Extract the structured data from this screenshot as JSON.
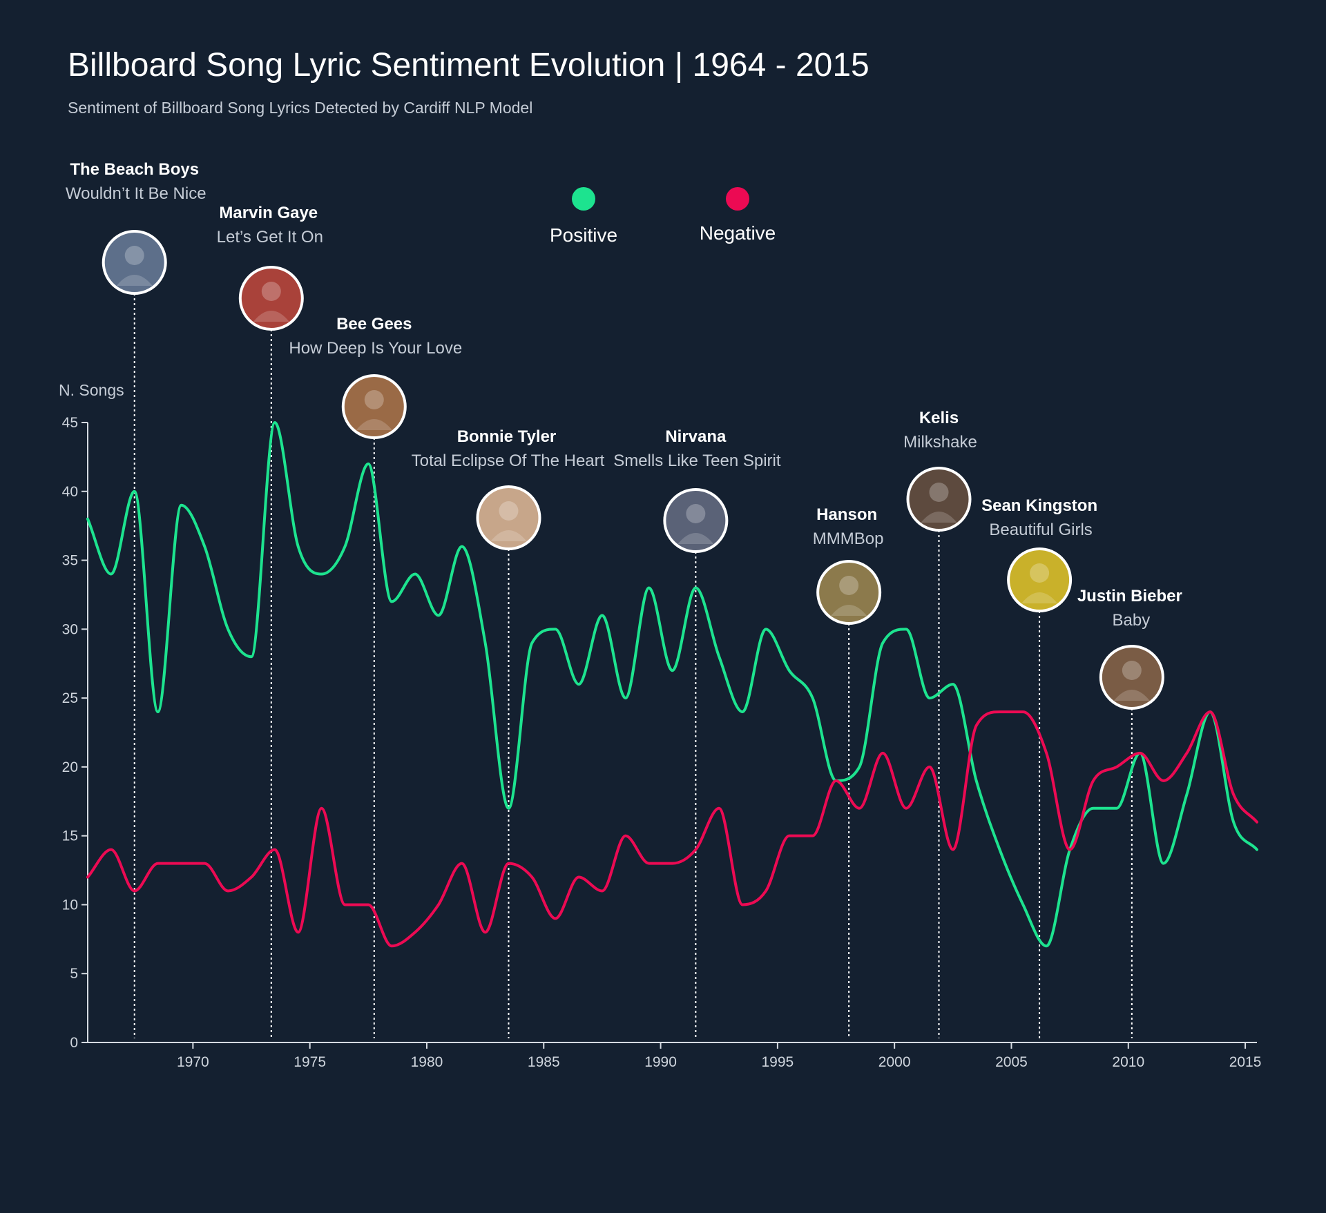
{
  "chart_data": {
    "type": "line",
    "title": "Billboard Song Lyric Sentiment Evolution | 1964 - 2015",
    "subtitle": "Sentiment of Billboard Song Lyrics Detected by Cardiff NLP Model",
    "ylabel": "N. Songs",
    "xlabel": "",
    "xlim": [
      1965.5,
      2015.5
    ],
    "ylim": [
      0,
      45
    ],
    "xticks": [
      1970,
      1975,
      1980,
      1985,
      1990,
      1995,
      2000,
      2005,
      2010,
      2015
    ],
    "yticks": [
      0,
      5,
      10,
      15,
      20,
      25,
      30,
      35,
      40,
      45
    ],
    "grid": false,
    "legend_position": "top-center",
    "series": [
      {
        "name": "Positive",
        "color": "#1de38f",
        "x": [
          1965.5,
          1966.5,
          1967.5,
          1968.5,
          1969.5,
          1970.5,
          1971.5,
          1972.5,
          1973.5,
          1974.5,
          1975.5,
          1976.5,
          1977.5,
          1978.5,
          1979.5,
          1980.5,
          1981.5,
          1982.5,
          1983.5,
          1984.5,
          1985.5,
          1986.5,
          1987.5,
          1988.5,
          1989.5,
          1990.5,
          1991.5,
          1992.5,
          1993.5,
          1994.5,
          1995.5,
          1996.5,
          1997.5,
          1998.5,
          1999.5,
          2000.5,
          2001.5,
          2002.5,
          2003.5,
          2004.5,
          2005.5,
          2006.5,
          2007.5,
          2008.5,
          2009.5,
          2010.5,
          2011.5,
          2012.5,
          2013.5,
          2014.5,
          2015.5
        ],
        "y": [
          38,
          34,
          40,
          24,
          39,
          36,
          30,
          28,
          45,
          36,
          34,
          36,
          42,
          32,
          34,
          31,
          36,
          29,
          17,
          29,
          30,
          26,
          31,
          25,
          33,
          27,
          33,
          28,
          24,
          30,
          27,
          25,
          19,
          20,
          29,
          30,
          25,
          26,
          19,
          14,
          10,
          7,
          14,
          17,
          17,
          21,
          13,
          18,
          24,
          16,
          14
        ]
      },
      {
        "name": "Negative",
        "color": "#ec0a53",
        "x": [
          1965.5,
          1966.5,
          1967.5,
          1968.5,
          1969.5,
          1970.5,
          1971.5,
          1972.5,
          1973.5,
          1974.5,
          1975.5,
          1976.5,
          1977.5,
          1978.5,
          1979.5,
          1980.5,
          1981.5,
          1982.5,
          1983.5,
          1984.5,
          1985.5,
          1986.5,
          1987.5,
          1988.5,
          1989.5,
          1990.5,
          1991.5,
          1992.5,
          1993.5,
          1994.5,
          1995.5,
          1996.5,
          1997.5,
          1998.5,
          1999.5,
          2000.5,
          2001.5,
          2002.5,
          2003.5,
          2004.5,
          2005.5,
          2006.5,
          2007.5,
          2008.5,
          2009.5,
          2010.5,
          2011.5,
          2012.5,
          2013.5,
          2014.5,
          2015.5
        ],
        "y": [
          12,
          14,
          11,
          13,
          13,
          13,
          11,
          12,
          14,
          8,
          17,
          10,
          10,
          7,
          8,
          10,
          13,
          8,
          13,
          12,
          9,
          12,
          11,
          15,
          13,
          13,
          14,
          17,
          10,
          11,
          15,
          15,
          19,
          17,
          21,
          17,
          20,
          14,
          23,
          24,
          24,
          21,
          14,
          19,
          20,
          21,
          19,
          21,
          24,
          18,
          16
        ]
      }
    ],
    "annotations": [
      {
        "artist": "The Beach Boys",
        "song": "Wouldn’t It Be Nice",
        "year": 1967.5
      },
      {
        "artist": "Marvin Gaye",
        "song": "Let’s Get It On",
        "year": 1973.35
      },
      {
        "artist": "Bee Gees",
        "song": "How Deep Is Your Love",
        "year": 1977.75
      },
      {
        "artist": "Bonnie Tyler",
        "song": "Total Eclipse Of The Heart",
        "year": 1983.5
      },
      {
        "artist": "Nirvana",
        "song": "Smells Like Teen Spirit",
        "year": 1991.5
      },
      {
        "artist": "Hanson",
        "song": "MMMBop",
        "year": 1998.05
      },
      {
        "artist": "Kelis",
        "song": "Milkshake",
        "year": 2001.9
      },
      {
        "artist": "Sean Kingston",
        "song": "Beautiful Girls",
        "year": 2006.2
      },
      {
        "artist": "Justin Bieber",
        "song": "Baby",
        "year": 2010.15
      }
    ]
  }
}
